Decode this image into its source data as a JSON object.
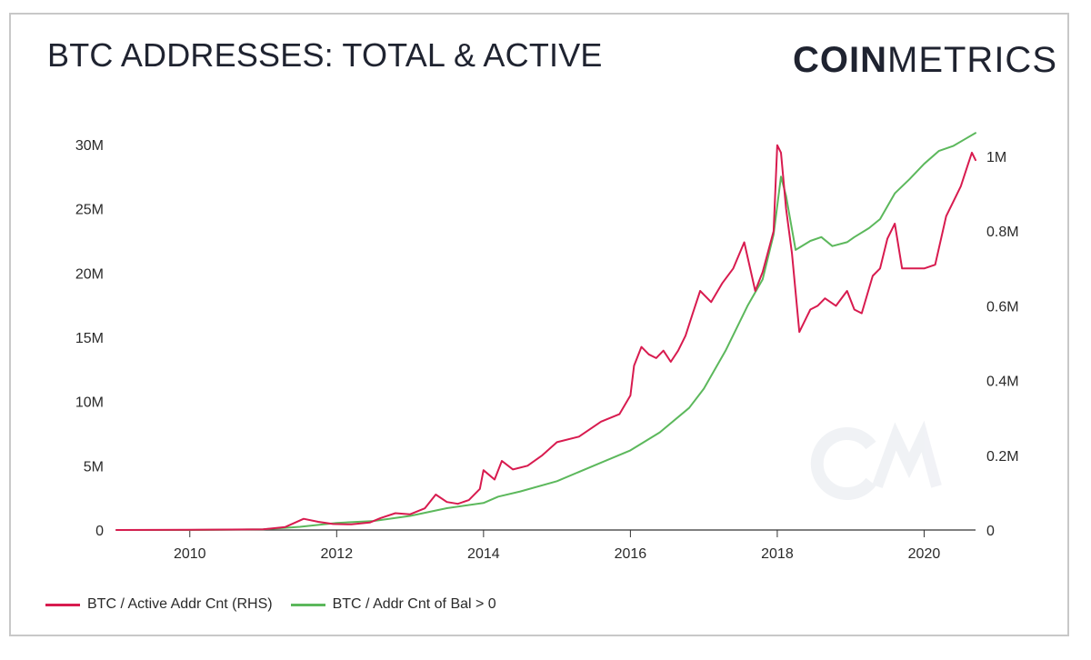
{
  "header": {
    "title": "BTC ADDRESSES: TOTAL & ACTIVE",
    "brand_bold": "COIN",
    "brand_light": "METRICS"
  },
  "watermark": "CM",
  "colors": {
    "active": "#d81b4f",
    "total": "#5cb85c",
    "axis": "#333333",
    "text": "#1f2330"
  },
  "chart_data": {
    "type": "line",
    "title": "BTC ADDRESSES: TOTAL & ACTIVE",
    "xlabel": "",
    "ylabel": "",
    "x_range": [
      2009.0,
      2020.7
    ],
    "x_ticks": [
      {
        "v": 2010,
        "label": "2010"
      },
      {
        "v": 2012,
        "label": "2012"
      },
      {
        "v": 2014,
        "label": "2014"
      },
      {
        "v": 2016,
        "label": "2016"
      },
      {
        "v": 2018,
        "label": "2018"
      },
      {
        "v": 2020,
        "label": "2020"
      }
    ],
    "y_left": {
      "range": [
        0,
        30000000
      ],
      "ticks": [
        {
          "v": 0,
          "label": "0"
        },
        {
          "v": 5000000,
          "label": "5M"
        },
        {
          "v": 10000000,
          "label": "10M"
        },
        {
          "v": 15000000,
          "label": "15M"
        },
        {
          "v": 20000000,
          "label": "20M"
        },
        {
          "v": 25000000,
          "label": "25M"
        },
        {
          "v": 30000000,
          "label": "30M"
        }
      ]
    },
    "y_right": {
      "range": [
        0,
        1000000
      ],
      "ticks": [
        {
          "v": 0,
          "label": "0"
        },
        {
          "v": 200000,
          "label": "0.2M"
        },
        {
          "v": 400000,
          "label": "0.4M"
        },
        {
          "v": 600000,
          "label": "0.6M"
        },
        {
          "v": 800000,
          "label": "0.8M"
        },
        {
          "v": 1000000,
          "label": "1M"
        }
      ]
    },
    "grid": false,
    "legend_position": "bottom-left",
    "series": [
      {
        "name": "BTC / Active Addr Cnt (RHS)",
        "axis": "right",
        "color": "#d81b4f",
        "points": [
          [
            2009.0,
            0
          ],
          [
            2010.0,
            500
          ],
          [
            2011.0,
            2000
          ],
          [
            2011.3,
            8000
          ],
          [
            2011.55,
            30000
          ],
          [
            2011.75,
            22000
          ],
          [
            2011.95,
            16000
          ],
          [
            2012.2,
            15000
          ],
          [
            2012.45,
            20000
          ],
          [
            2012.6,
            32000
          ],
          [
            2012.8,
            45000
          ],
          [
            2013.0,
            42000
          ],
          [
            2013.2,
            58000
          ],
          [
            2013.35,
            95000
          ],
          [
            2013.5,
            75000
          ],
          [
            2013.65,
            70000
          ],
          [
            2013.8,
            80000
          ],
          [
            2013.95,
            110000
          ],
          [
            2014.0,
            160000
          ],
          [
            2014.15,
            135000
          ],
          [
            2014.25,
            185000
          ],
          [
            2014.4,
            162000
          ],
          [
            2014.6,
            172000
          ],
          [
            2014.8,
            200000
          ],
          [
            2015.0,
            235000
          ],
          [
            2015.3,
            250000
          ],
          [
            2015.6,
            290000
          ],
          [
            2015.85,
            310000
          ],
          [
            2016.0,
            360000
          ],
          [
            2016.05,
            440000
          ],
          [
            2016.15,
            490000
          ],
          [
            2016.25,
            470000
          ],
          [
            2016.35,
            460000
          ],
          [
            2016.45,
            480000
          ],
          [
            2016.55,
            450000
          ],
          [
            2016.65,
            480000
          ],
          [
            2016.75,
            520000
          ],
          [
            2016.85,
            580000
          ],
          [
            2016.95,
            640000
          ],
          [
            2017.1,
            610000
          ],
          [
            2017.25,
            660000
          ],
          [
            2017.4,
            700000
          ],
          [
            2017.55,
            770000
          ],
          [
            2017.7,
            640000
          ],
          [
            2017.8,
            690000
          ],
          [
            2017.95,
            800000
          ],
          [
            2018.0,
            1030000
          ],
          [
            2018.05,
            1010000
          ],
          [
            2018.12,
            860000
          ],
          [
            2018.2,
            740000
          ],
          [
            2018.3,
            530000
          ],
          [
            2018.45,
            590000
          ],
          [
            2018.55,
            600000
          ],
          [
            2018.65,
            620000
          ],
          [
            2018.8,
            600000
          ],
          [
            2018.95,
            640000
          ],
          [
            2019.05,
            590000
          ],
          [
            2019.15,
            580000
          ],
          [
            2019.3,
            680000
          ],
          [
            2019.4,
            700000
          ],
          [
            2019.5,
            780000
          ],
          [
            2019.6,
            820000
          ],
          [
            2019.7,
            700000
          ],
          [
            2019.85,
            700000
          ],
          [
            2020.0,
            700000
          ],
          [
            2020.15,
            710000
          ],
          [
            2020.3,
            840000
          ],
          [
            2020.4,
            880000
          ],
          [
            2020.5,
            920000
          ],
          [
            2020.6,
            980000
          ],
          [
            2020.65,
            1010000
          ],
          [
            2020.7,
            990000
          ]
        ]
      },
      {
        "name": "BTC / Addr Cnt of Bal > 0",
        "axis": "left",
        "color": "#5cb85c",
        "points": [
          [
            2009.0,
            0
          ],
          [
            2010.0,
            0
          ],
          [
            2011.0,
            50000
          ],
          [
            2011.5,
            250000
          ],
          [
            2012.0,
            550000
          ],
          [
            2012.5,
            700000
          ],
          [
            2013.0,
            1100000
          ],
          [
            2013.5,
            1700000
          ],
          [
            2014.0,
            2100000
          ],
          [
            2014.2,
            2600000
          ],
          [
            2014.5,
            3000000
          ],
          [
            2015.0,
            3800000
          ],
          [
            2015.5,
            5000000
          ],
          [
            2016.0,
            6200000
          ],
          [
            2016.4,
            7600000
          ],
          [
            2016.8,
            9500000
          ],
          [
            2017.0,
            11000000
          ],
          [
            2017.3,
            14000000
          ],
          [
            2017.6,
            17500000
          ],
          [
            2017.8,
            19500000
          ],
          [
            2017.95,
            23000000
          ],
          [
            2018.05,
            27500000
          ],
          [
            2018.12,
            26000000
          ],
          [
            2018.25,
            21800000
          ],
          [
            2018.45,
            22500000
          ],
          [
            2018.6,
            22800000
          ],
          [
            2018.75,
            22100000
          ],
          [
            2018.95,
            22400000
          ],
          [
            2019.05,
            22800000
          ],
          [
            2019.25,
            23500000
          ],
          [
            2019.4,
            24200000
          ],
          [
            2019.6,
            26200000
          ],
          [
            2019.8,
            27300000
          ],
          [
            2020.0,
            28500000
          ],
          [
            2020.2,
            29500000
          ],
          [
            2020.4,
            29900000
          ],
          [
            2020.55,
            30400000
          ],
          [
            2020.7,
            30900000
          ]
        ]
      }
    ]
  }
}
